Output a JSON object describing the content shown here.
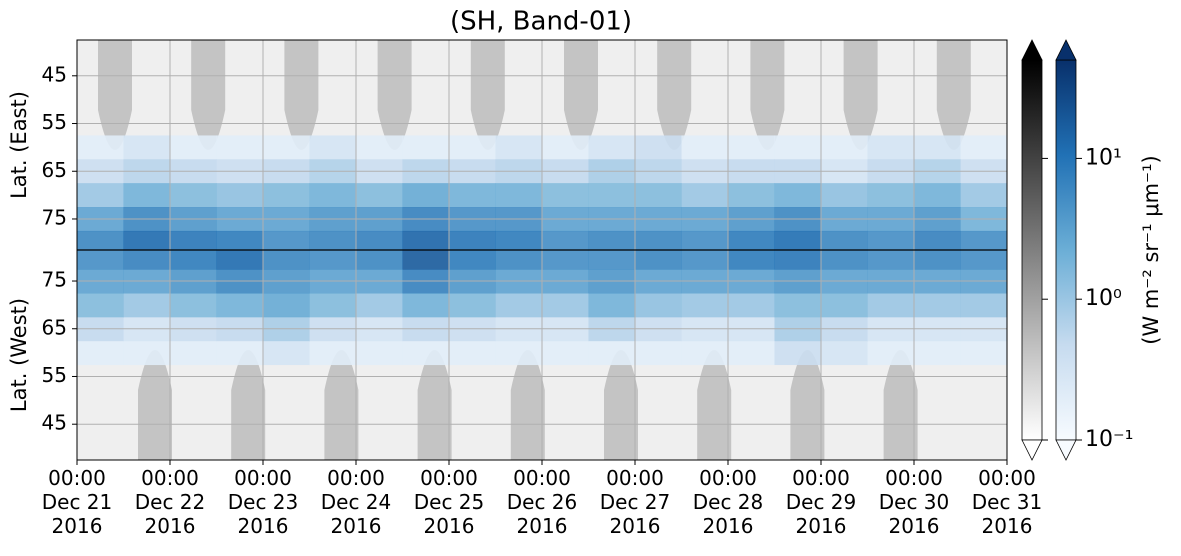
{
  "chart_data": {
    "type": "heatmap",
    "title": "(SH, Band-01)",
    "grid": true,
    "xlim": [
      "2016-12-21T00:00",
      "2016-12-31T00:00"
    ],
    "xticks": [
      {
        "value": "2016-12-21T00:00",
        "label": "00:00\nDec 21\n2016"
      },
      {
        "value": "2016-12-22T00:00",
        "label": "00:00\nDec 22\n2016"
      },
      {
        "value": "2016-12-23T00:00",
        "label": "00:00\nDec 23\n2016"
      },
      {
        "value": "2016-12-24T00:00",
        "label": "00:00\nDec 24\n2016"
      },
      {
        "value": "2016-12-25T00:00",
        "label": "00:00\nDec 25\n2016"
      },
      {
        "value": "2016-12-26T00:00",
        "label": "00:00\nDec 26\n2016"
      },
      {
        "value": "2016-12-27T00:00",
        "label": "00:00\nDec 27\n2016"
      },
      {
        "value": "2016-12-28T00:00",
        "label": "00:00\nDec 28\n2016"
      },
      {
        "value": "2016-12-29T00:00",
        "label": "00:00\nDec 29\n2016"
      },
      {
        "value": "2016-12-30T00:00",
        "label": "00:00\nDec 30\n2016"
      },
      {
        "value": "2016-12-31T00:00",
        "label": "00:00\nDec 31\n2016"
      }
    ],
    "x_bins": [
      "2016-12-21T00:00",
      "2016-12-21T12:00",
      "2016-12-22T00:00",
      "2016-12-22T12:00",
      "2016-12-23T00:00",
      "2016-12-23T12:00",
      "2016-12-24T00:00",
      "2016-12-24T12:00",
      "2016-12-25T00:00",
      "2016-12-25T12:00",
      "2016-12-26T00:00",
      "2016-12-26T12:00",
      "2016-12-27T00:00",
      "2016-12-27T12:00",
      "2016-12-28T00:00",
      "2016-12-28T12:00",
      "2016-12-29T00:00",
      "2016-12-29T12:00",
      "2016-12-30T00:00",
      "2016-12-30T12:00",
      "2016-12-31T00:00"
    ],
    "panels": [
      {
        "ylabel": "Lat. (East)",
        "ylim": [
          81.5,
          37.5
        ],
        "yticks": [
          45,
          55,
          65,
          75
        ],
        "lat_bins": [
          57.5,
          62.5,
          67.5,
          72.5,
          77.5,
          81.5
        ],
        "values": [
          [
            0.2,
            0.3,
            0.2,
            0.2,
            0.2,
            0.3,
            0.2,
            0.2,
            0.2,
            0.3,
            0.2,
            0.3,
            0.4,
            0.2,
            0.2,
            0.2,
            0.2,
            0.3,
            0.3,
            0.2
          ],
          [
            0.4,
            0.6,
            0.5,
            0.4,
            0.5,
            0.7,
            0.4,
            0.6,
            0.5,
            0.6,
            0.5,
            0.8,
            0.6,
            0.4,
            0.5,
            0.5,
            0.3,
            0.5,
            0.7,
            0.4
          ],
          [
            1,
            2,
            1.5,
            1.2,
            1.5,
            2,
            1.5,
            2.5,
            2,
            2,
            1.5,
            1.5,
            1.5,
            1,
            1.5,
            2,
            1.2,
            1.5,
            2,
            1
          ],
          [
            3,
            6,
            4,
            3,
            3,
            4,
            4,
            7,
            5,
            5,
            3,
            3,
            3,
            3,
            4,
            6,
            3,
            3,
            4,
            2
          ],
          [
            6,
            12,
            9,
            8,
            5,
            6,
            7,
            14,
            9,
            8,
            5,
            6,
            6,
            5,
            8,
            11,
            6,
            5,
            7,
            5
          ]
        ]
      },
      {
        "ylabel": "Lat. (West)",
        "ylim": [
          37.5,
          81.5
        ],
        "yticks": [
          45,
          55,
          65,
          75
        ],
        "lat_bins": [
          57.5,
          62.5,
          67.5,
          72.5,
          77.5,
          81.5
        ],
        "values": [
          [
            0.2,
            0.2,
            0.2,
            0.2,
            0.3,
            0.2,
            0.2,
            0.2,
            0.2,
            0.2,
            0.2,
            0.2,
            0.2,
            0.2,
            0.2,
            0.4,
            0.3,
            0.2,
            0.2,
            0.2
          ],
          [
            0.5,
            0.3,
            0.4,
            0.5,
            0.8,
            0.4,
            0.3,
            0.5,
            0.4,
            0.3,
            0.3,
            0.6,
            0.4,
            0.3,
            0.3,
            0.8,
            0.5,
            0.3,
            0.3,
            0.3
          ],
          [
            1.5,
            1,
            1.5,
            2,
            2.5,
            1.5,
            1,
            2,
            1.5,
            1,
            1,
            2,
            1.2,
            1,
            1,
            1.5,
            1.5,
            1,
            1,
            1
          ],
          [
            3,
            3,
            4,
            6,
            4,
            3,
            3,
            7,
            4,
            3,
            3,
            4,
            3,
            3,
            3,
            4,
            3,
            3,
            3,
            3
          ],
          [
            5,
            7,
            8,
            12,
            6,
            5,
            6,
            18,
            8,
            6,
            5,
            5,
            6,
            5,
            8,
            9,
            6,
            5,
            6,
            5
          ]
        ]
      }
    ],
    "colorbar": {
      "label": "(W m⁻² sr⁻¹ μm⁻¹)",
      "scale": "log",
      "lim": [
        0.1,
        50
      ],
      "ticks": [
        {
          "value": 0.1,
          "label": "10⁻¹"
        },
        {
          "value": 1,
          "label": "10⁰"
        },
        {
          "value": 10,
          "label": "10¹"
        }
      ],
      "gray_colors": [
        "#ffffff",
        "#000000"
      ],
      "blue_colors": [
        "#f7fbff",
        "#c6dbef",
        "#6baed6",
        "#2171b5",
        "#08306b"
      ]
    }
  }
}
